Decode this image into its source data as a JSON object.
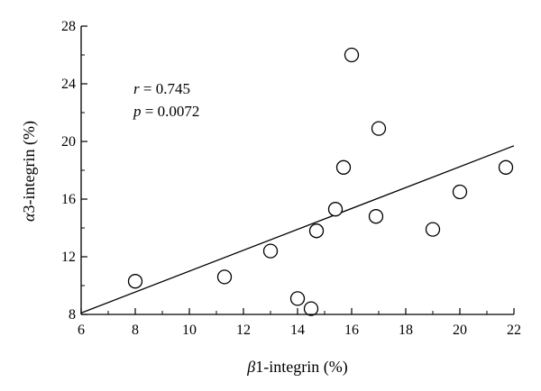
{
  "chart_data": {
    "type": "scatter",
    "xlabel": {
      "symbol": "β",
      "text": "1-integrin (%)"
    },
    "ylabel": {
      "symbol": "α",
      "text": "3-integrin (%)"
    },
    "xlim": [
      6,
      22
    ],
    "ylim": [
      8,
      28
    ],
    "xticks": [
      6,
      8,
      10,
      12,
      14,
      16,
      18,
      20,
      22
    ],
    "yticks": [
      8,
      12,
      16,
      20,
      24,
      28
    ],
    "grid": false,
    "marker": "open-circle",
    "points": [
      {
        "x": 8.0,
        "y": 10.3
      },
      {
        "x": 11.3,
        "y": 10.6
      },
      {
        "x": 13.0,
        "y": 12.4
      },
      {
        "x": 14.0,
        "y": 9.1
      },
      {
        "x": 14.5,
        "y": 8.4
      },
      {
        "x": 14.7,
        "y": 13.8
      },
      {
        "x": 15.4,
        "y": 15.3
      },
      {
        "x": 15.7,
        "y": 18.2
      },
      {
        "x": 16.0,
        "y": 26.0
      },
      {
        "x": 16.9,
        "y": 14.8
      },
      {
        "x": 17.0,
        "y": 20.9
      },
      {
        "x": 19.0,
        "y": 13.9
      },
      {
        "x": 20.0,
        "y": 16.5
      },
      {
        "x": 21.7,
        "y": 18.2
      }
    ],
    "regression_line": {
      "x": [
        6,
        22
      ],
      "y": [
        8.1,
        19.7
      ]
    },
    "annotations": {
      "r": {
        "symbol": "r",
        "text": " = 0.745"
      },
      "p": {
        "symbol": "p",
        "text": " = 0.0072"
      }
    }
  }
}
